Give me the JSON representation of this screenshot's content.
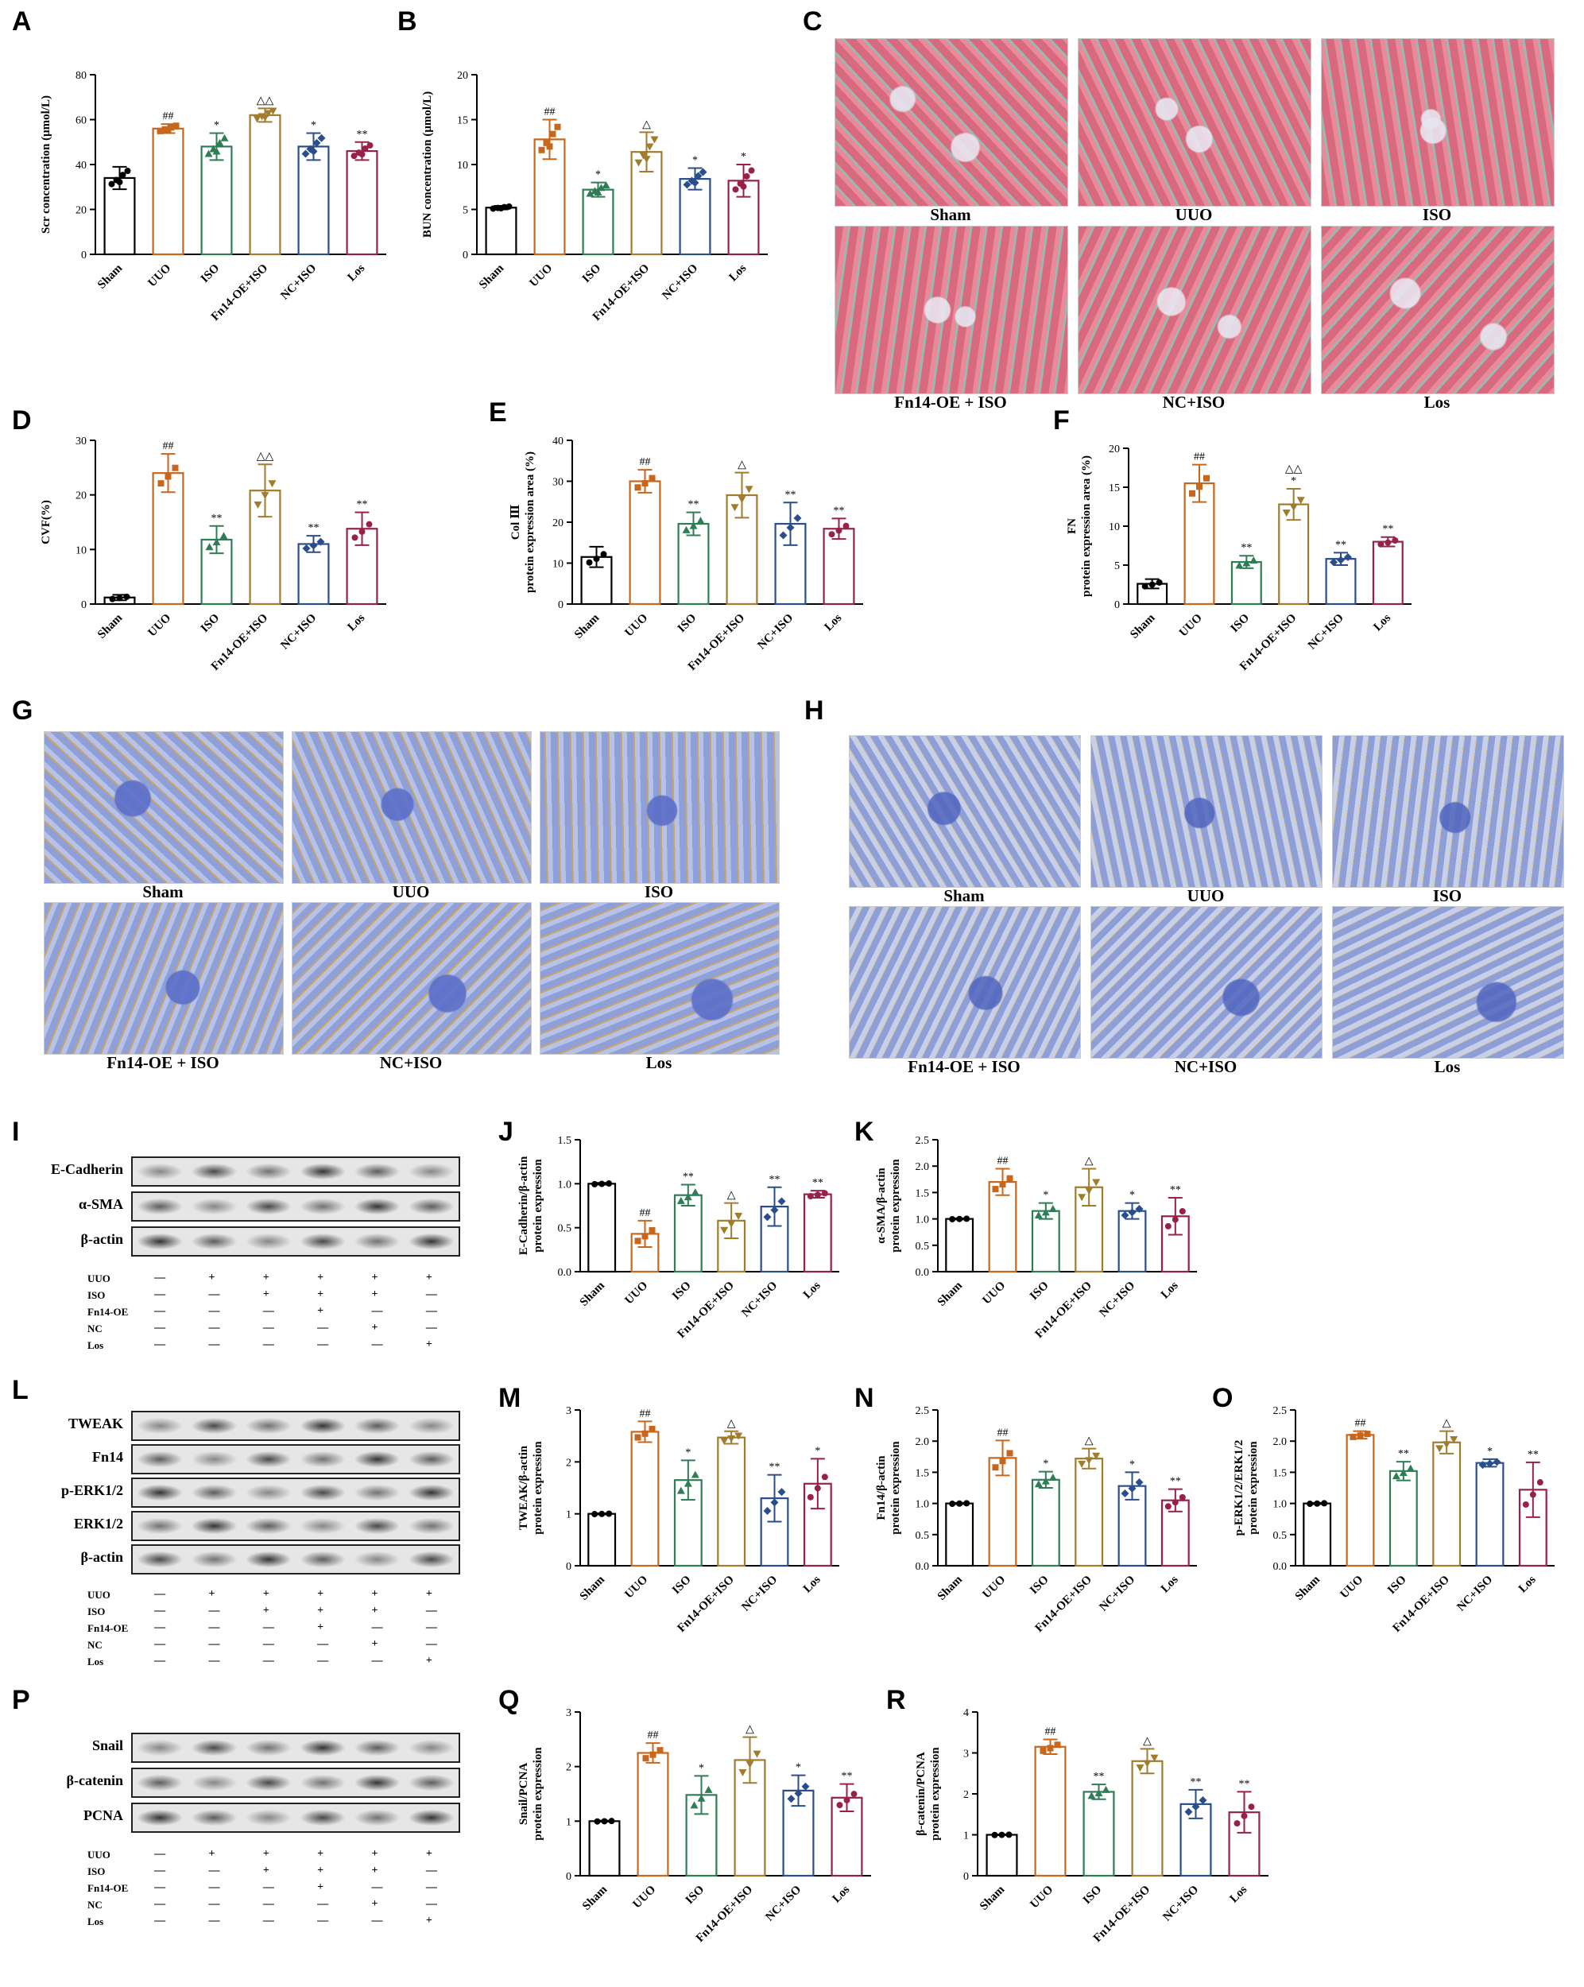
{
  "colors": {
    "sham": "#000000",
    "uuo": "#c8661c",
    "iso": "#2e7d55",
    "fn14": "#a07c2c",
    "nc": "#2a4e8c",
    "los": "#98214b"
  },
  "panel_letters": [
    "A",
    "B",
    "C",
    "D",
    "E",
    "F",
    "G",
    "H",
    "I",
    "J",
    "K",
    "L",
    "M",
    "N",
    "O",
    "P",
    "Q",
    "R"
  ],
  "groups": [
    "Sham",
    "UUO",
    "ISO",
    "Fn14-OE+ISO",
    "NC+ISO",
    "Los"
  ],
  "micro_labels_top": [
    "Sham",
    "UUO",
    "ISO"
  ],
  "micro_labels_bottom": [
    "Fn14-OE + ISO",
    "NC+ISO",
    "Los"
  ],
  "blots": {
    "I": {
      "bands": [
        "E-Cadherin",
        "α-SMA",
        "β-actin"
      ]
    },
    "L": {
      "bands": [
        "TWEAK",
        "Fn14",
        "p-ERK1/2",
        "ERK1/2",
        "β-actin"
      ]
    },
    "P": {
      "bands": [
        "Snail",
        "β-catenin",
        "PCNA"
      ]
    },
    "conditions": [
      "UUO",
      "ISO",
      "Fn14-OE",
      "NC",
      "Los"
    ],
    "signs": [
      [
        "—",
        "+",
        "+",
        "+",
        "+",
        "+"
      ],
      [
        "—",
        "—",
        "+",
        "+",
        "+",
        "—"
      ],
      [
        "—",
        "—",
        "—",
        "+",
        "—",
        "—"
      ],
      [
        "—",
        "—",
        "—",
        "—",
        "+",
        "—"
      ],
      [
        "—",
        "—",
        "—",
        "—",
        "—",
        "+"
      ]
    ]
  },
  "chart_data": [
    {
      "id": "A",
      "type": "bar",
      "categories": [
        "Sham",
        "UUO",
        "ISO",
        "Fn14-OE+ISO",
        "NC+ISO",
        "Los"
      ],
      "values": [
        34,
        56,
        48,
        62,
        48,
        46
      ],
      "errors": [
        5,
        2,
        6,
        3,
        6,
        4
      ],
      "ylabel": "Scr concentration (μmol/L)",
      "ylim": [
        0,
        80
      ],
      "yticks": [
        0,
        20,
        40,
        60,
        80
      ],
      "markers": [
        "##",
        "*",
        "△△",
        "*",
        "**"
      ]
    },
    {
      "id": "B",
      "type": "bar",
      "categories": [
        "Sham",
        "UUO",
        "ISO",
        "Fn14-OE+ISO",
        "NC+ISO",
        "Los"
      ],
      "values": [
        5.2,
        12.8,
        7.2,
        11.4,
        8.4,
        8.2
      ],
      "errors": [
        0.2,
        2.2,
        0.8,
        2.2,
        1.2,
        1.8
      ],
      "ylabel": "BUN concentration (μmol/L)",
      "ylim": [
        0,
        20
      ],
      "yticks": [
        0,
        5,
        10,
        15,
        20
      ],
      "markers": [
        "##",
        "*",
        "△",
        "*",
        "*"
      ]
    },
    {
      "id": "D",
      "type": "bar",
      "categories": [
        "Sham",
        "UUO",
        "ISO",
        "Fn14-OE+ISO",
        "NC+ISO",
        "Los"
      ],
      "values": [
        1.2,
        24,
        11.8,
        20.8,
        11,
        13.8
      ],
      "errors": [
        0.5,
        3.5,
        2.5,
        4.8,
        1.5,
        3
      ],
      "ylabel": "CVF(%)",
      "ylim": [
        0,
        30
      ],
      "yticks": [
        0,
        10,
        20,
        30
      ],
      "markers": [
        "##",
        "**",
        "△△",
        "**",
        "**"
      ]
    },
    {
      "id": "E",
      "type": "bar",
      "categories": [
        "Sham",
        "UUO",
        "ISO",
        "Fn14-OE+ISO",
        "NC+ISO",
        "Los"
      ],
      "values": [
        11.5,
        30,
        19.6,
        26.6,
        19.6,
        18.4
      ],
      "errors": [
        2.5,
        2.8,
        2.8,
        5.5,
        5.2,
        2.5
      ],
      "ylabel": "Col Ⅲ protein expression area (%)",
      "ylim": [
        0,
        40
      ],
      "yticks": [
        0,
        10,
        20,
        30,
        40
      ],
      "markers": [
        "##",
        "**",
        "△",
        "**",
        "**"
      ]
    },
    {
      "id": "F",
      "type": "bar",
      "categories": [
        "Sham",
        "UUO",
        "ISO",
        "Fn14-OE+ISO",
        "NC+ISO",
        "Los"
      ],
      "values": [
        2.6,
        15.5,
        5.4,
        12.8,
        5.8,
        8
      ],
      "errors": [
        0.6,
        2.4,
        0.8,
        2,
        0.8,
        0.6
      ],
      "ylabel": "FN protein expression area (%)",
      "ylim": [
        0,
        20
      ],
      "yticks": [
        0,
        5,
        10,
        15,
        20
      ],
      "markers": [
        "##",
        "**",
        "△△ *",
        "**",
        "**"
      ]
    },
    {
      "id": "J",
      "type": "bar",
      "categories": [
        "Sham",
        "UUO",
        "ISO",
        "Fn14-OE+ISO",
        "NC+ISO",
        "Los"
      ],
      "values": [
        1,
        0.43,
        0.87,
        0.58,
        0.74,
        0.88
      ],
      "errors": [
        0.01,
        0.15,
        0.12,
        0.2,
        0.22,
        0.04
      ],
      "ylabel": "E-Cadherin/β-actin protein expression",
      "ylim": [
        0,
        1.5
      ],
      "yticks": [
        0,
        0.5,
        1.0,
        1.5
      ],
      "markers": [
        "##",
        "**",
        "△",
        "**",
        "**"
      ]
    },
    {
      "id": "K",
      "type": "bar",
      "categories": [
        "Sham",
        "UUO",
        "ISO",
        "Fn14-OE+ISO",
        "NC+ISO",
        "Los"
      ],
      "values": [
        1,
        1.7,
        1.15,
        1.6,
        1.15,
        1.05
      ],
      "errors": [
        0.01,
        0.25,
        0.15,
        0.35,
        0.15,
        0.35
      ],
      "ylabel": "α-SMA/β-actin protein expression",
      "ylim": [
        0,
        2.5
      ],
      "yticks": [
        0,
        0.5,
        1.0,
        1.5,
        2.0,
        2.5
      ],
      "markers": [
        "##",
        "*",
        "△",
        "*",
        "**"
      ]
    },
    {
      "id": "M",
      "type": "bar",
      "categories": [
        "Sham",
        "UUO",
        "ISO",
        "Fn14-OE+ISO",
        "NC+ISO",
        "Los"
      ],
      "values": [
        1,
        2.58,
        1.65,
        2.47,
        1.3,
        1.58
      ],
      "errors": [
        0.01,
        0.2,
        0.38,
        0.12,
        0.45,
        0.48
      ],
      "ylabel": "TWEAK/β-actin protein expression",
      "ylim": [
        0,
        3
      ],
      "yticks": [
        0,
        1,
        2,
        3
      ],
      "markers": [
        "##",
        "*",
        "△",
        "**",
        "*"
      ]
    },
    {
      "id": "N",
      "type": "bar",
      "categories": [
        "Sham",
        "UUO",
        "ISO",
        "Fn14-OE+ISO",
        "NC+ISO",
        "Los"
      ],
      "values": [
        1,
        1.73,
        1.38,
        1.72,
        1.28,
        1.05
      ],
      "errors": [
        0.01,
        0.28,
        0.13,
        0.16,
        0.22,
        0.18
      ],
      "ylabel": "Fn14/β-actin protein expression",
      "ylim": [
        0,
        2.5
      ],
      "yticks": [
        0,
        0.5,
        1.0,
        1.5,
        2.0,
        2.5
      ],
      "markers": [
        "##",
        "*",
        "△",
        "*",
        "**"
      ]
    },
    {
      "id": "O",
      "type": "bar",
      "categories": [
        "Sham",
        "UUO",
        "ISO",
        "Fn14-OE+ISO",
        "NC+ISO",
        "Los"
      ],
      "values": [
        1,
        2.1,
        1.52,
        1.98,
        1.65,
        1.22
      ],
      "errors": [
        0.01,
        0.06,
        0.15,
        0.18,
        0.06,
        0.44
      ],
      "ylabel": "p-ERK1/2/ERK1/2 protein expression",
      "ylim": [
        0,
        2.5
      ],
      "yticks": [
        0,
        0.5,
        1.0,
        1.5,
        2.0,
        2.5
      ],
      "markers": [
        "##",
        "**",
        "△",
        "*",
        "**"
      ]
    },
    {
      "id": "Q",
      "type": "bar",
      "categories": [
        "Sham",
        "UUO",
        "ISO",
        "Fn14-OE+ISO",
        "NC+ISO",
        "Los"
      ],
      "values": [
        1,
        2.25,
        1.48,
        2.12,
        1.56,
        1.43
      ],
      "errors": [
        0.01,
        0.18,
        0.35,
        0.42,
        0.28,
        0.25
      ],
      "ylabel": "Snail/PCNA protein expression",
      "ylim": [
        0,
        3
      ],
      "yticks": [
        0,
        1,
        2,
        3
      ],
      "markers": [
        "##",
        "*",
        "△",
        "*",
        "**"
      ]
    },
    {
      "id": "R",
      "type": "bar",
      "categories": [
        "Sham",
        "UUO",
        "ISO",
        "Fn14-OE+ISO",
        "NC+ISO",
        "Los"
      ],
      "values": [
        1,
        3.15,
        2.05,
        2.8,
        1.75,
        1.55
      ],
      "errors": [
        0.01,
        0.18,
        0.18,
        0.3,
        0.35,
        0.5
      ],
      "ylabel": "β-catenin/PCNA protein expression",
      "ylim": [
        0,
        4
      ],
      "yticks": [
        0,
        1,
        2,
        3,
        4
      ],
      "markers": [
        "##",
        "**",
        "△",
        "**",
        "**"
      ]
    }
  ]
}
